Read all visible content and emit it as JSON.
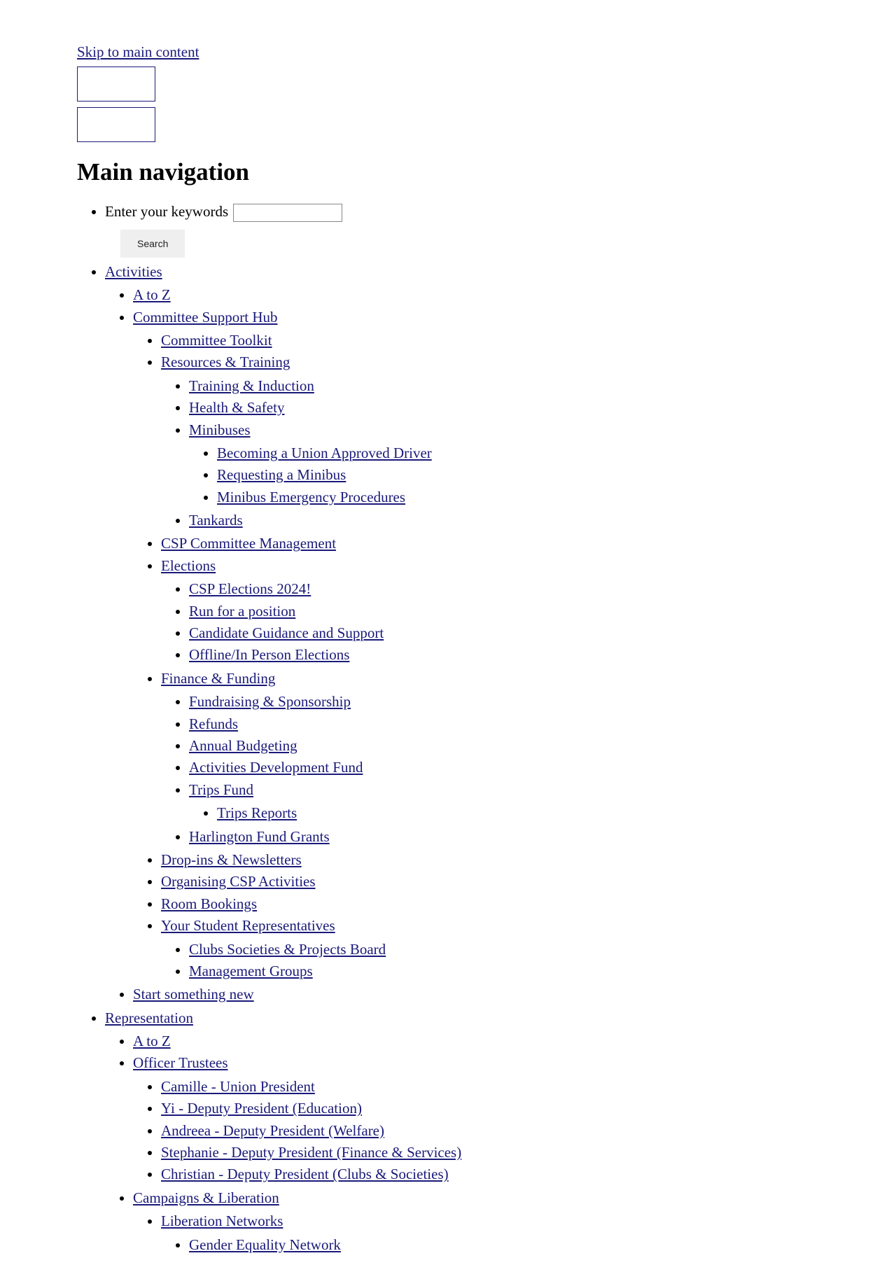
{
  "skip_link": "Skip to main content",
  "heading": "Main navigation",
  "search": {
    "label": "Enter your keywords",
    "button": "Search"
  },
  "nav": {
    "activities": {
      "label": "Activities",
      "a_to_z": "A to Z",
      "committee_support_hub": {
        "label": "Committee Support Hub",
        "committee_toolkit": "Committee Toolkit",
        "resources_training": {
          "label": "Resources & Training",
          "training_induction": "Training & Induction",
          "health_safety": "Health & Safety",
          "minibuses": {
            "label": "Minibuses",
            "becoming_driver": "Becoming a Union Approved Driver",
            "requesting": "Requesting a Minibus",
            "emergency": "Minibus Emergency Procedures"
          },
          "tankards": "Tankards"
        },
        "csp_committee_mgmt": "CSP Committee Management",
        "elections": {
          "label": "Elections",
          "csp_2024": "CSP Elections 2024!",
          "run_position": "Run for a position",
          "candidate_guidance": "Candidate Guidance and Support",
          "offline": "Offline/In Person Elections"
        },
        "finance_funding": {
          "label": "Finance & Funding",
          "fundraising": "Fundraising & Sponsorship",
          "refunds": "Refunds",
          "annual_budgeting": "Annual Budgeting",
          "adf": "Activities Development Fund",
          "trips_fund": {
            "label": "Trips Fund",
            "reports": "Trips Reports"
          },
          "harlington": "Harlington Fund Grants"
        },
        "dropins": "Drop-ins & Newsletters",
        "organising": "Organising CSP Activities",
        "room_bookings": "Room Bookings",
        "student_reps": {
          "label": "Your Student Representatives",
          "csp_board": "Clubs Societies & Projects Board",
          "mgmt_groups": "Management Groups"
        }
      },
      "start_new": "Start something new"
    },
    "representation": {
      "label": "Representation",
      "a_to_z": "A to Z",
      "officer_trustees": {
        "label": "Officer Trustees",
        "camille": "Camille - Union President",
        "yi": "Yi - Deputy President (Education)",
        "andreea": "Andreea - Deputy President (Welfare)",
        "stephanie": "Stephanie - Deputy President (Finance & Services)",
        "christian": "Christian - Deputy President (Clubs & Societies)"
      },
      "campaigns_liberation": {
        "label": "Campaigns & Liberation",
        "liberation_networks": {
          "label": "Liberation Networks",
          "gender_equality": "Gender Equality Network"
        }
      }
    }
  }
}
